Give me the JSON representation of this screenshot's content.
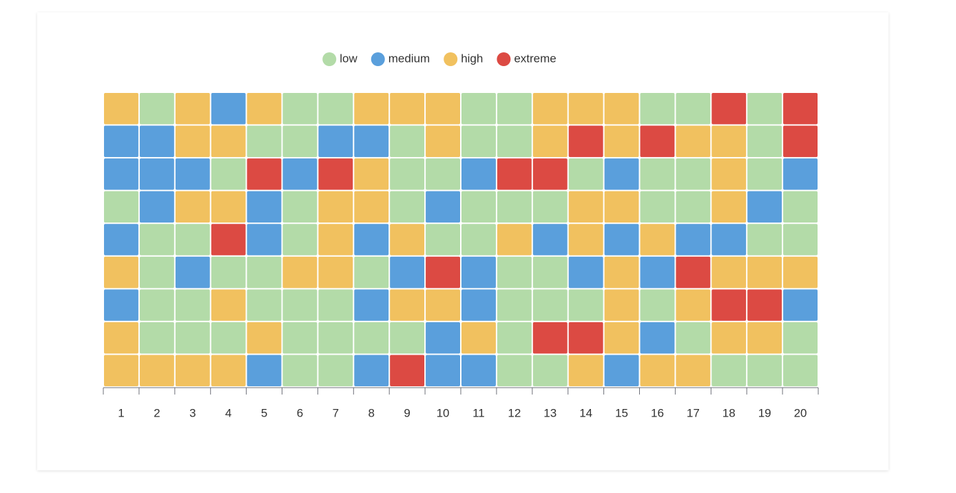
{
  "chart_data": {
    "type": "heatmap",
    "categories": [
      "1",
      "2",
      "3",
      "4",
      "5",
      "6",
      "7",
      "8",
      "9",
      "10",
      "11",
      "12",
      "13",
      "14",
      "15",
      "16",
      "17",
      "18",
      "19",
      "20"
    ],
    "levels": [
      {
        "name": "low",
        "color": "#b3dba8"
      },
      {
        "name": "medium",
        "color": "#5a9fdc"
      },
      {
        "name": "high",
        "color": "#f1c15f"
      },
      {
        "name": "extreme",
        "color": "#dc4a43"
      }
    ],
    "values": [
      [
        2,
        0,
        2,
        1,
        2,
        0,
        0,
        2,
        2,
        2,
        0,
        0,
        2,
        2,
        2,
        0,
        0,
        3,
        0,
        3
      ],
      [
        1,
        1,
        2,
        2,
        0,
        0,
        1,
        1,
        0,
        2,
        0,
        0,
        2,
        3,
        2,
        3,
        2,
        2,
        0,
        3
      ],
      [
        1,
        1,
        1,
        0,
        3,
        1,
        3,
        2,
        0,
        0,
        1,
        3,
        3,
        0,
        1,
        0,
        0,
        2,
        0,
        1
      ],
      [
        0,
        1,
        2,
        2,
        1,
        0,
        2,
        2,
        0,
        1,
        0,
        0,
        0,
        2,
        2,
        0,
        0,
        2,
        1,
        0
      ],
      [
        1,
        0,
        0,
        3,
        1,
        0,
        2,
        1,
        2,
        0,
        0,
        2,
        1,
        2,
        1,
        2,
        1,
        1,
        0,
        0
      ],
      [
        2,
        0,
        1,
        0,
        0,
        2,
        2,
        0,
        1,
        3,
        1,
        0,
        0,
        1,
        2,
        1,
        3,
        2,
        2,
        2
      ],
      [
        1,
        0,
        0,
        2,
        0,
        0,
        0,
        1,
        2,
        2,
        1,
        0,
        0,
        0,
        2,
        0,
        2,
        3,
        3,
        1
      ],
      [
        2,
        0,
        0,
        0,
        2,
        0,
        0,
        0,
        0,
        1,
        2,
        0,
        3,
        3,
        2,
        1,
        0,
        2,
        2,
        0
      ],
      [
        2,
        2,
        2,
        2,
        1,
        0,
        0,
        1,
        3,
        1,
        1,
        0,
        0,
        2,
        1,
        2,
        2,
        0,
        0,
        0
      ]
    ]
  }
}
